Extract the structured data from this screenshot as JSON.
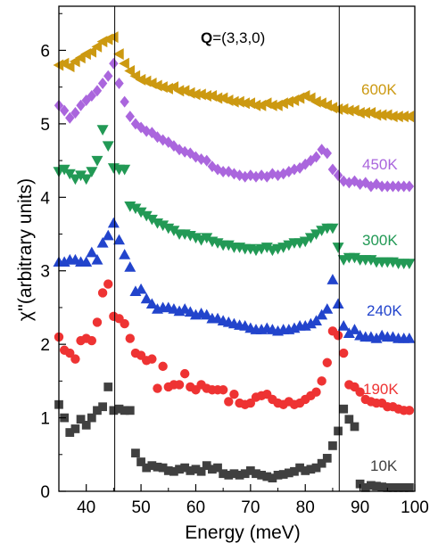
{
  "chart_data": {
    "type": "scatter",
    "xlabel": "Energy (meV)",
    "ylabel": "χ''(arbitrary units)",
    "xlim": [
      35,
      100
    ],
    "ylim": [
      0,
      6.6
    ],
    "x_ticks": [
      40,
      50,
      60,
      70,
      80,
      90,
      100
    ],
    "y_ticks": [
      0,
      1,
      2,
      3,
      4,
      5,
      6
    ],
    "grid": false,
    "annotation": {
      "bold": "Q",
      "rest": "=(3,3,0)"
    },
    "vertical_lines": [
      45.2,
      86.2
    ],
    "series": [
      {
        "name": "10K",
        "color": "#404040",
        "marker": "square",
        "x": [
          35,
          36,
          37,
          38,
          39,
          40,
          41,
          42,
          43,
          44,
          45,
          46,
          47,
          48,
          49,
          50,
          51,
          52,
          53,
          54,
          55,
          56,
          57,
          58,
          59,
          60,
          61,
          62,
          63,
          64,
          65,
          66,
          67,
          68,
          69,
          70,
          71,
          72,
          73,
          74,
          75,
          76,
          77,
          78,
          79,
          80,
          81,
          82,
          83,
          84,
          85,
          86,
          87,
          88,
          89,
          90,
          91,
          92,
          93,
          94,
          95,
          96,
          97,
          98,
          99
        ],
        "y": [
          1.18,
          1.0,
          0.8,
          0.85,
          0.98,
          0.9,
          1.0,
          1.1,
          1.15,
          1.42,
          1.1,
          1.12,
          1.1,
          1.1,
          0.52,
          0.4,
          0.32,
          0.35,
          0.33,
          0.32,
          0.28,
          0.27,
          0.3,
          0.32,
          0.28,
          0.3,
          0.27,
          0.35,
          0.3,
          0.32,
          0.24,
          0.22,
          0.24,
          0.22,
          0.24,
          0.28,
          0.24,
          0.22,
          0.2,
          0.18,
          0.22,
          0.23,
          0.25,
          0.27,
          0.32,
          0.28,
          0.3,
          0.32,
          0.38,
          0.45,
          0.62,
          0.82,
          1.12,
          0.98,
          0.88,
          0.1,
          0.05,
          0.08,
          0.07,
          0.06,
          0.05,
          0.05,
          0.05,
          0.05,
          0.05
        ]
      },
      {
        "name": "190K",
        "color": "#ee3333",
        "marker": "circle",
        "x": [
          35,
          36,
          37,
          38,
          39,
          40,
          41,
          42,
          43,
          44,
          45,
          46,
          47,
          48,
          49,
          50,
          51,
          52,
          53,
          54,
          55,
          56,
          57,
          58,
          59,
          60,
          61,
          62,
          63,
          64,
          65,
          66,
          67,
          68,
          69,
          70,
          71,
          72,
          73,
          74,
          75,
          76,
          77,
          78,
          79,
          80,
          81,
          82,
          83,
          84,
          85,
          86,
          87,
          88,
          89,
          90,
          91,
          92,
          93,
          94,
          95,
          96,
          97,
          98,
          99
        ],
        "y": [
          2.1,
          1.92,
          1.88,
          1.8,
          2.05,
          2.08,
          2.05,
          2.3,
          2.7,
          2.82,
          2.38,
          2.35,
          2.28,
          2.08,
          1.88,
          1.85,
          1.78,
          1.8,
          1.4,
          1.7,
          1.42,
          1.45,
          1.45,
          1.6,
          1.42,
          1.38,
          1.45,
          1.4,
          1.38,
          1.38,
          1.38,
          1.22,
          1.32,
          1.2,
          1.18,
          1.2,
          1.28,
          1.3,
          1.32,
          1.25,
          1.2,
          1.18,
          1.22,
          1.18,
          1.2,
          1.25,
          1.3,
          1.35,
          1.5,
          1.75,
          2.18,
          2.12,
          1.88,
          1.45,
          1.42,
          1.35,
          1.25,
          1.22,
          1.2,
          1.2,
          1.15,
          1.15,
          1.12,
          1.1,
          1.1
        ]
      },
      {
        "name": "240K",
        "color": "#2244cc",
        "marker": "triangle-up",
        "x": [
          35,
          36,
          37,
          38,
          39,
          40,
          41,
          42,
          43,
          44,
          45,
          46,
          47,
          48,
          49,
          50,
          51,
          52,
          53,
          54,
          55,
          56,
          57,
          58,
          59,
          60,
          61,
          62,
          63,
          64,
          65,
          66,
          67,
          68,
          69,
          70,
          71,
          72,
          73,
          74,
          75,
          76,
          77,
          78,
          79,
          80,
          81,
          82,
          83,
          84,
          85,
          86,
          87,
          88,
          89,
          90,
          91,
          92,
          93,
          94,
          95,
          96,
          97,
          98,
          99
        ],
        "y": [
          3.12,
          3.12,
          3.15,
          3.15,
          3.12,
          3.12,
          3.25,
          3.15,
          3.38,
          3.48,
          3.65,
          3.42,
          3.22,
          3.05,
          2.72,
          2.75,
          2.62,
          2.55,
          2.48,
          2.5,
          2.5,
          2.48,
          2.45,
          2.48,
          2.44,
          2.4,
          2.42,
          2.4,
          2.35,
          2.35,
          2.32,
          2.3,
          2.28,
          2.26,
          2.25,
          2.22,
          2.2,
          2.2,
          2.22,
          2.2,
          2.18,
          2.2,
          2.2,
          2.22,
          2.25,
          2.25,
          2.28,
          2.32,
          2.4,
          2.48,
          2.88,
          2.55,
          2.25,
          2.15,
          2.2,
          2.12,
          2.1,
          2.1,
          2.08,
          2.12,
          2.1,
          2.1,
          2.08,
          2.08,
          2.08
        ]
      },
      {
        "name": "300K",
        "color": "#229955",
        "marker": "triangle-down",
        "x": [
          35,
          36,
          37,
          38,
          39,
          40,
          41,
          42,
          43,
          44,
          45,
          46,
          47,
          48,
          49,
          50,
          51,
          52,
          53,
          54,
          55,
          56,
          57,
          58,
          59,
          60,
          61,
          62,
          63,
          64,
          65,
          66,
          67,
          68,
          69,
          70,
          71,
          72,
          73,
          74,
          75,
          76,
          77,
          78,
          79,
          80,
          81,
          82,
          83,
          84,
          85,
          86,
          87,
          88,
          89,
          90,
          91,
          92,
          93,
          94,
          95,
          96,
          97,
          98,
          99
        ],
        "y": [
          4.35,
          4.38,
          4.32,
          4.25,
          4.3,
          4.25,
          4.35,
          4.5,
          4.92,
          4.7,
          4.4,
          4.38,
          4.38,
          3.88,
          3.85,
          3.8,
          3.75,
          3.7,
          3.65,
          3.62,
          3.58,
          3.55,
          3.5,
          3.5,
          3.48,
          3.45,
          3.42,
          3.45,
          3.4,
          3.38,
          3.35,
          3.35,
          3.32,
          3.32,
          3.3,
          3.3,
          3.28,
          3.3,
          3.32,
          3.28,
          3.3,
          3.32,
          3.35,
          3.38,
          3.38,
          3.4,
          3.45,
          3.5,
          3.55,
          3.58,
          3.58,
          3.32,
          3.15,
          3.18,
          3.18,
          3.15,
          3.15,
          3.15,
          3.12,
          3.12,
          3.12,
          3.12,
          3.1,
          3.1,
          3.1
        ]
      },
      {
        "name": "450K",
        "color": "#aa66dd",
        "marker": "diamond",
        "x": [
          35,
          36,
          37,
          38,
          39,
          40,
          41,
          42,
          43,
          44,
          45,
          46,
          47,
          48,
          49,
          50,
          51,
          52,
          53,
          54,
          55,
          56,
          57,
          58,
          59,
          60,
          61,
          62,
          63,
          64,
          65,
          66,
          67,
          68,
          69,
          70,
          71,
          72,
          73,
          74,
          75,
          76,
          77,
          78,
          79,
          80,
          81,
          82,
          83,
          84,
          85,
          86,
          87,
          88,
          89,
          90,
          91,
          92,
          93,
          94,
          95,
          96,
          97,
          98,
          99
        ],
        "y": [
          5.25,
          5.18,
          5.08,
          5.15,
          5.25,
          5.32,
          5.38,
          5.45,
          5.55,
          5.65,
          5.82,
          5.55,
          5.3,
          5.1,
          5.0,
          4.95,
          4.9,
          4.88,
          4.82,
          4.78,
          4.75,
          4.7,
          4.65,
          4.62,
          4.6,
          4.55,
          4.52,
          4.5,
          4.42,
          4.38,
          4.35,
          4.35,
          4.32,
          4.3,
          4.28,
          4.3,
          4.28,
          4.3,
          4.28,
          4.32,
          4.3,
          4.32,
          4.35,
          4.38,
          4.4,
          4.45,
          4.5,
          4.55,
          4.65,
          4.6,
          4.38,
          4.3,
          4.22,
          4.2,
          4.22,
          4.18,
          4.2,
          4.15,
          4.18,
          4.15,
          4.15,
          4.15,
          4.15,
          4.15,
          4.15
        ]
      },
      {
        "name": "600K",
        "color": "#cc9911",
        "marker": "triangle-left",
        "x": [
          35,
          36,
          37,
          38,
          39,
          40,
          41,
          42,
          43,
          44,
          45,
          46,
          47,
          48,
          49,
          50,
          51,
          52,
          53,
          54,
          55,
          56,
          57,
          58,
          59,
          60,
          61,
          62,
          63,
          64,
          65,
          66,
          67,
          68,
          69,
          70,
          71,
          72,
          73,
          74,
          75,
          76,
          77,
          78,
          79,
          80,
          81,
          82,
          83,
          84,
          85,
          86,
          87,
          88,
          89,
          90,
          91,
          92,
          93,
          94,
          95,
          96,
          97,
          98,
          99
        ],
        "y": [
          5.8,
          5.82,
          5.78,
          5.85,
          5.9,
          5.95,
          5.98,
          6.05,
          6.12,
          6.15,
          6.18,
          5.95,
          5.82,
          5.72,
          5.65,
          5.6,
          5.58,
          5.55,
          5.52,
          5.5,
          5.48,
          5.5,
          5.45,
          5.45,
          5.42,
          5.4,
          5.4,
          5.38,
          5.38,
          5.35,
          5.35,
          5.32,
          5.3,
          5.3,
          5.28,
          5.28,
          5.25,
          5.25,
          5.28,
          5.25,
          5.25,
          5.28,
          5.3,
          5.32,
          5.35,
          5.38,
          5.35,
          5.3,
          5.28,
          5.25,
          5.22,
          5.2,
          5.2,
          5.18,
          5.18,
          5.15,
          5.15,
          5.15,
          5.12,
          5.12,
          5.12,
          5.1,
          5.1,
          5.1,
          5.1
        ]
      }
    ]
  }
}
